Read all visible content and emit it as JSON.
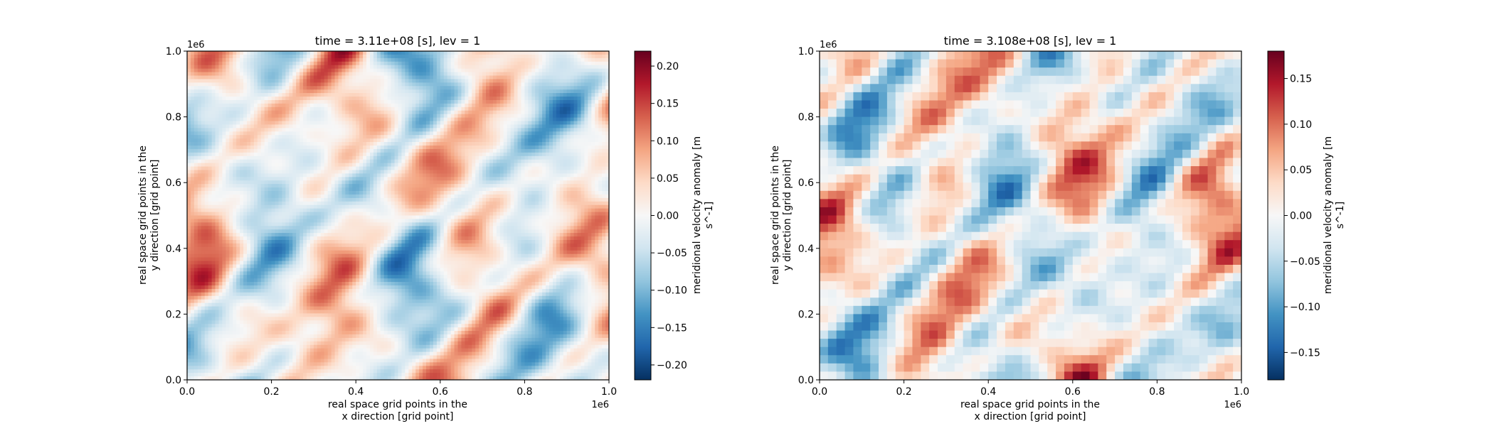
{
  "colors": {
    "rdbu_r": [
      "#053061",
      "#2166ac",
      "#4393c3",
      "#92c5de",
      "#d1e5f0",
      "#f7f7f7",
      "#fddbc7",
      "#f4a582",
      "#d6604d",
      "#b2182b",
      "#67001f"
    ],
    "axis": "#000000",
    "background": "#ffffff"
  },
  "chart_data": [
    {
      "type": "heatmap",
      "title": "time = 3.11e+08 [s], lev = 1",
      "xlabel_line1": "real space grid points in the",
      "xlabel_line2": "x direction [grid point]",
      "ylabel_line1": "real space grid points in the",
      "ylabel_line2": "y direction [grid point]",
      "x_offset_label": "1e6",
      "y_offset_label": "1e6",
      "xlim": [
        0.0,
        1.0
      ],
      "ylim": [
        0.0,
        1.0
      ],
      "xticks": [
        "0.0",
        "0.2",
        "0.4",
        "0.6",
        "0.8",
        "1.0"
      ],
      "yticks": [
        "0.0",
        "0.2",
        "0.4",
        "0.6",
        "0.8",
        "1.0"
      ],
      "grid_resolution": "high (smooth field)",
      "colorbar": {
        "label_line1": "meridional velocity anomaly [m",
        "label_line2": "s^-1]",
        "vmin": -0.22,
        "vmax": 0.22,
        "ticks": [
          -0.2,
          -0.15,
          -0.1,
          -0.05,
          0.0,
          0.05,
          0.1,
          0.15,
          0.2
        ],
        "tick_labels": [
          "−0.20",
          "−0.15",
          "−0.10",
          "−0.05",
          "0.00",
          "0.05",
          "0.10",
          "0.15",
          "0.20"
        ]
      }
    },
    {
      "type": "heatmap",
      "title": "time = 3.108e+08 [s], lev = 1",
      "xlabel_line1": "real space grid points in the",
      "xlabel_line2": "x direction [grid point]",
      "ylabel_line1": "real space grid points in the",
      "ylabel_line2": "y direction [grid point]",
      "x_offset_label": "1e6",
      "y_offset_label": "1e6",
      "xlim": [
        0.0,
        1.0
      ],
      "ylim": [
        0.0,
        1.0
      ],
      "xticks": [
        "0.0",
        "0.2",
        "0.4",
        "0.6",
        "0.8",
        "1.0"
      ],
      "yticks": [
        "0.0",
        "0.2",
        "0.4",
        "0.6",
        "0.8",
        "1.0"
      ],
      "grid_resolution": "coarse (pixelated field)",
      "colorbar": {
        "label_line1": "meridional velocity anomaly [m",
        "label_line2": "s^-1]",
        "vmin": -0.18,
        "vmax": 0.18,
        "ticks": [
          -0.15,
          -0.1,
          -0.05,
          0.0,
          0.05,
          0.1,
          0.15
        ],
        "tick_labels": [
          "−0.15",
          "−0.10",
          "−0.05",
          "0.00",
          "0.05",
          "0.10",
          "0.15"
        ]
      }
    }
  ]
}
